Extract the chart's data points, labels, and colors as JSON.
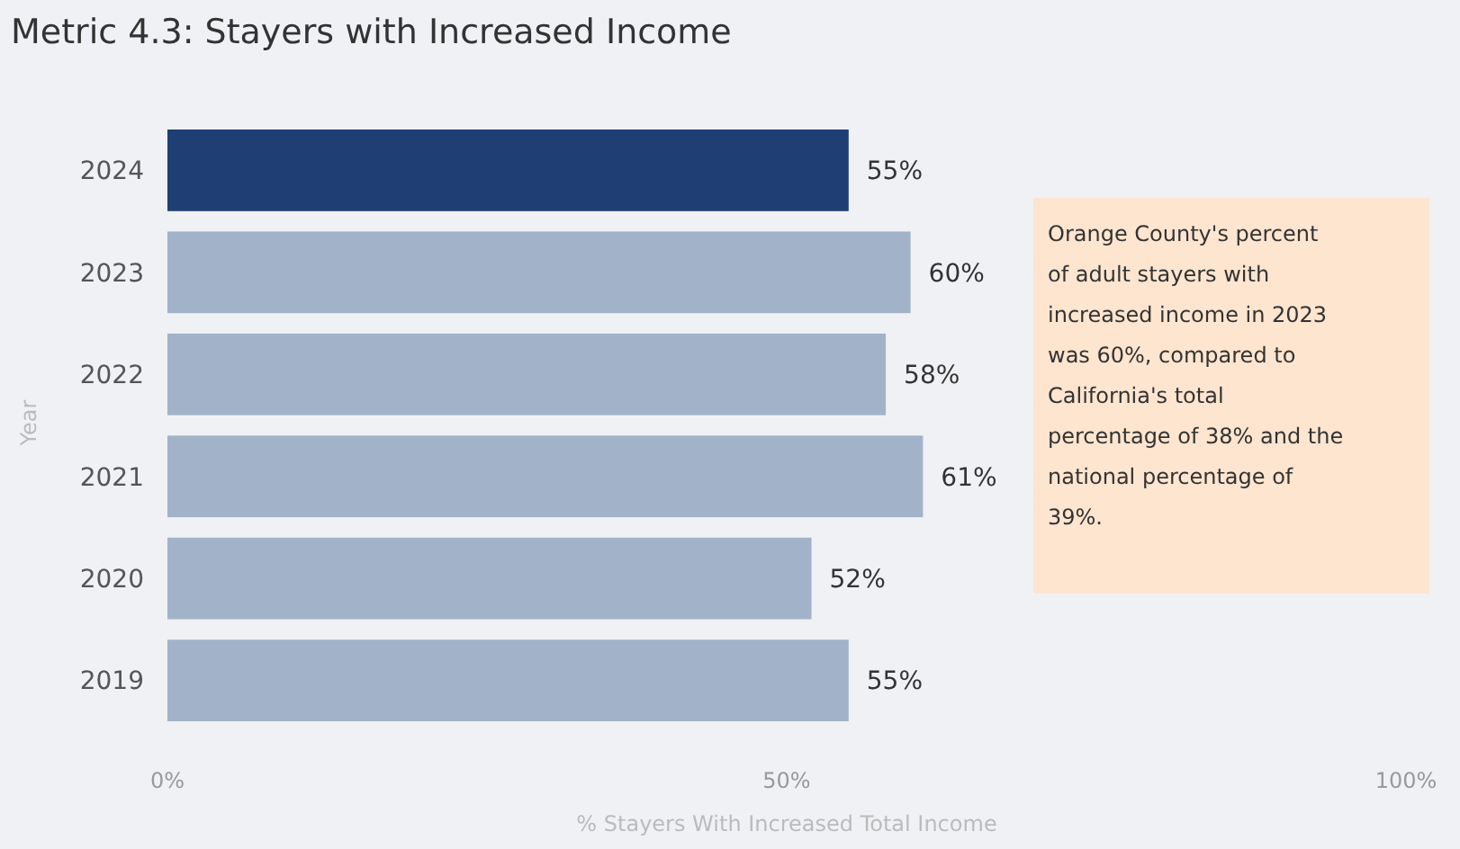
{
  "chart_data": {
    "type": "bar",
    "orientation": "horizontal",
    "title": "Metric 4.3: Stayers with Increased Income",
    "xlabel": "% Stayers With Increased Total Income",
    "ylabel": "Year",
    "categories": [
      "2024",
      "2023",
      "2022",
      "2021",
      "2020",
      "2019"
    ],
    "values": [
      55,
      60,
      58,
      61,
      52,
      55
    ],
    "colors": [
      "#1f3f74",
      "#a2b3c9",
      "#a2b3c9",
      "#a2b3c9",
      "#a2b3c9",
      "#a2b3c9"
    ],
    "value_labels": [
      "55%",
      "60%",
      "58%",
      "61%",
      "52%",
      "55%"
    ],
    "xlim": [
      0,
      100
    ],
    "xticks": [
      {
        "value": 0,
        "label": "0%"
      },
      {
        "value": 50,
        "label": "50%"
      },
      {
        "value": 100,
        "label": "100%"
      }
    ],
    "annotations": [
      "Orange County's percent of adult stayers with increased income in 2023 was 60%, compared to California's total percentage of 38% and the national percentage of 39%."
    ]
  }
}
